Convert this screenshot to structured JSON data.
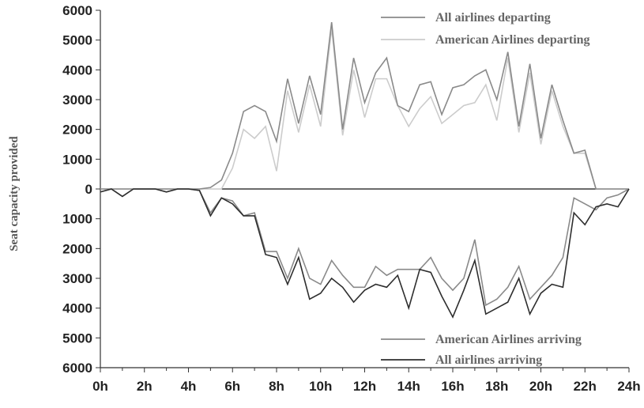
{
  "chart_data": {
    "type": "line",
    "title": "",
    "xlabel": "",
    "ylabel": "Seat capacity provided",
    "xlim": [
      0,
      24
    ],
    "ylim": [
      -6000,
      6000
    ],
    "grid": false,
    "legend_top_position": "top-right",
    "legend_bottom_position": "bottom-right",
    "x_ticks": [
      {
        "value": 0,
        "label": "0h"
      },
      {
        "value": 2,
        "label": "2h"
      },
      {
        "value": 4,
        "label": "4h"
      },
      {
        "value": 6,
        "label": "6h"
      },
      {
        "value": 8,
        "label": "8h"
      },
      {
        "value": 10,
        "label": "10h"
      },
      {
        "value": 12,
        "label": "12h"
      },
      {
        "value": 14,
        "label": "14h"
      },
      {
        "value": 16,
        "label": "16h"
      },
      {
        "value": 18,
        "label": "18h"
      },
      {
        "value": 20,
        "label": "20h"
      },
      {
        "value": 22,
        "label": "22h"
      },
      {
        "value": 24,
        "label": "24h"
      }
    ],
    "y_ticks": [
      {
        "value": 6000,
        "label": "6000"
      },
      {
        "value": 5000,
        "label": "5000"
      },
      {
        "value": 4000,
        "label": "4000"
      },
      {
        "value": 3000,
        "label": "3000"
      },
      {
        "value": 2000,
        "label": "2000"
      },
      {
        "value": 1000,
        "label": "1000"
      },
      {
        "value": 0,
        "label": "0"
      },
      {
        "value": -1000,
        "label": "1000"
      },
      {
        "value": -2000,
        "label": "2000"
      },
      {
        "value": -3000,
        "label": "3000"
      },
      {
        "value": -4000,
        "label": "4000"
      },
      {
        "value": -5000,
        "label": "5000"
      },
      {
        "value": -6000,
        "label": "6000"
      }
    ],
    "series": [
      {
        "name": "All airlines departing",
        "color": "#8a8a8a",
        "x": [
          0,
          0.5,
          1,
          1.5,
          2,
          2.5,
          3,
          3.5,
          4,
          4.5,
          5,
          5.5,
          6,
          6.5,
          7,
          7.5,
          8,
          8.5,
          9,
          9.5,
          10,
          10.5,
          11,
          11.5,
          12,
          12.5,
          13,
          13.5,
          14,
          14.5,
          15,
          15.5,
          16,
          16.5,
          17,
          17.5,
          18,
          18.5,
          19,
          19.5,
          20,
          20.5,
          21,
          21.5,
          22,
          22.5,
          23,
          23.5,
          24
        ],
        "values": [
          0,
          0,
          0,
          0,
          0,
          0,
          0,
          0,
          0,
          0,
          50,
          300,
          1200,
          2600,
          2800,
          2600,
          1600,
          3700,
          2200,
          3800,
          2500,
          5600,
          2000,
          4400,
          2900,
          3900,
          4400,
          2800,
          2600,
          3500,
          3600,
          2500,
          3400,
          3500,
          3800,
          4000,
          3000,
          4600,
          2100,
          4200,
          1700,
          3500,
          2300,
          1200,
          1300,
          0,
          0,
          0,
          0
        ]
      },
      {
        "name": "American Airlines departing",
        "color": "#cccccc",
        "x": [
          0,
          0.5,
          1,
          1.5,
          2,
          2.5,
          3,
          3.5,
          4,
          4.5,
          5,
          5.5,
          6,
          6.5,
          7,
          7.5,
          8,
          8.5,
          9,
          9.5,
          10,
          10.5,
          11,
          11.5,
          12,
          12.5,
          13,
          13.5,
          14,
          14.5,
          15,
          15.5,
          16,
          16.5,
          17,
          17.5,
          18,
          18.5,
          19,
          19.5,
          20,
          20.5,
          21,
          21.5,
          22,
          22.5,
          23,
          23.5,
          24
        ],
        "values": [
          0,
          0,
          0,
          0,
          0,
          0,
          0,
          0,
          0,
          0,
          0,
          0,
          700,
          2000,
          1700,
          2100,
          600,
          3300,
          1900,
          3500,
          2100,
          5400,
          1800,
          4000,
          2400,
          3700,
          3700,
          2800,
          2100,
          2700,
          3100,
          2200,
          2500,
          2800,
          2900,
          3500,
          2300,
          4400,
          1900,
          3900,
          1500,
          3300,
          2100,
          1200,
          1200,
          0,
          0,
          0,
          0
        ]
      },
      {
        "name": "American Airlines arriving",
        "color": "#8a8a8a",
        "x": [
          0,
          0.5,
          1,
          1.5,
          2,
          2.5,
          3,
          3.5,
          4,
          4.5,
          5,
          5.5,
          6,
          6.5,
          7,
          7.5,
          8,
          8.5,
          9,
          9.5,
          10,
          10.5,
          11,
          11.5,
          12,
          12.5,
          13,
          13.5,
          14,
          14.5,
          15,
          15.5,
          16,
          16.5,
          17,
          17.5,
          18,
          18.5,
          19,
          19.5,
          20,
          20.5,
          21,
          21.5,
          22,
          22.5,
          23,
          23.5,
          24
        ],
        "values": [
          -100,
          0,
          -250,
          0,
          0,
          0,
          -100,
          0,
          0,
          -50,
          -800,
          -300,
          -400,
          -900,
          -800,
          -2100,
          -2100,
          -3000,
          -2000,
          -3000,
          -3200,
          -2400,
          -2900,
          -3300,
          -3300,
          -2600,
          -2900,
          -2700,
          -2700,
          -2700,
          -2300,
          -3000,
          -3400,
          -3000,
          -1700,
          -3900,
          -3700,
          -3300,
          -2600,
          -3700,
          -3300,
          -2900,
          -2300,
          -300,
          -500,
          -700,
          -300,
          -200,
          0
        ]
      },
      {
        "name": "All airlines arriving",
        "color": "#2e2e2e",
        "x": [
          0,
          0.5,
          1,
          1.5,
          2,
          2.5,
          3,
          3.5,
          4,
          4.5,
          5,
          5.5,
          6,
          6.5,
          7,
          7.5,
          8,
          8.5,
          9,
          9.5,
          10,
          10.5,
          11,
          11.5,
          12,
          12.5,
          13,
          13.5,
          14,
          14.5,
          15,
          15.5,
          16,
          16.5,
          17,
          17.5,
          18,
          18.5,
          19,
          19.5,
          20,
          20.5,
          21,
          21.5,
          22,
          22.5,
          23,
          23.5,
          24
        ],
        "values": [
          -100,
          0,
          -250,
          0,
          0,
          0,
          -100,
          0,
          0,
          -50,
          -900,
          -300,
          -500,
          -900,
          -900,
          -2200,
          -2300,
          -3200,
          -2300,
          -3700,
          -3500,
          -3000,
          -3300,
          -3800,
          -3400,
          -3200,
          -3300,
          -2900,
          -4000,
          -2700,
          -2800,
          -3600,
          -4300,
          -3400,
          -2400,
          -4200,
          -4000,
          -3800,
          -3000,
          -4200,
          -3500,
          -3200,
          -3300,
          -800,
          -1200,
          -600,
          -500,
          -600,
          0
        ]
      }
    ]
  }
}
